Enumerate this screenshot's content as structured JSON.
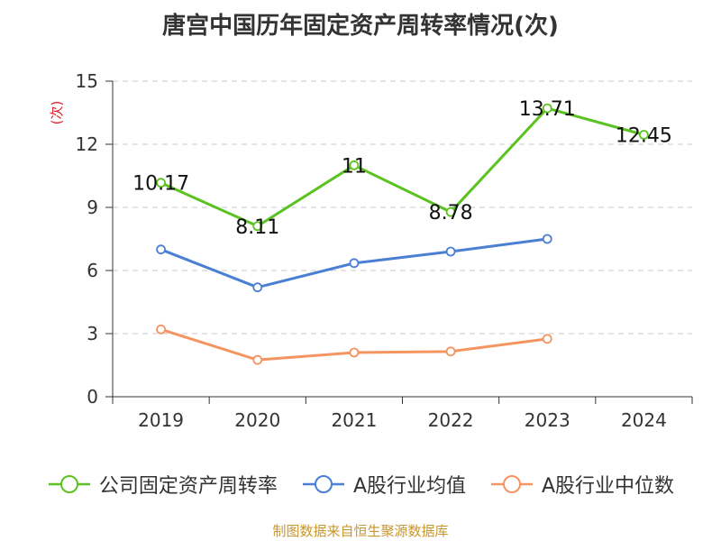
{
  "title": "唐宫中国历年固定资产周转率情况(次)",
  "source": "制图数据来自恒生聚源数据库",
  "colors": {
    "company": "#5cc221",
    "industry_avg": "#4a7fd4",
    "industry_median": "#f49460",
    "ylabel": "#e0212b"
  },
  "chart_data": {
    "type": "line",
    "title": "唐宫中国历年固定资产周转率情况(次)",
    "xlabel": "",
    "ylabel": "(次)",
    "categories": [
      "2019",
      "2020",
      "2021",
      "2022",
      "2023",
      "2024"
    ],
    "ylim": [
      0,
      15
    ],
    "yticks": [
      0,
      3,
      6,
      9,
      12,
      15
    ],
    "grid": true,
    "legend_position": "bottom",
    "series": [
      {
        "name": "公司固定资产周转率",
        "color": "#5cc221",
        "values": [
          10.17,
          8.11,
          11,
          8.78,
          13.71,
          12.45
        ],
        "labels": [
          "10.17",
          "8.11",
          "11",
          "8.78",
          "13.71",
          "12.45"
        ]
      },
      {
        "name": "A股行业均值",
        "color": "#4a7fd4",
        "values": [
          7.0,
          5.2,
          6.35,
          6.9,
          7.5,
          null
        ]
      },
      {
        "name": "A股行业中位数",
        "color": "#f49460",
        "values": [
          3.2,
          1.75,
          2.1,
          2.15,
          2.75,
          null
        ]
      }
    ]
  }
}
